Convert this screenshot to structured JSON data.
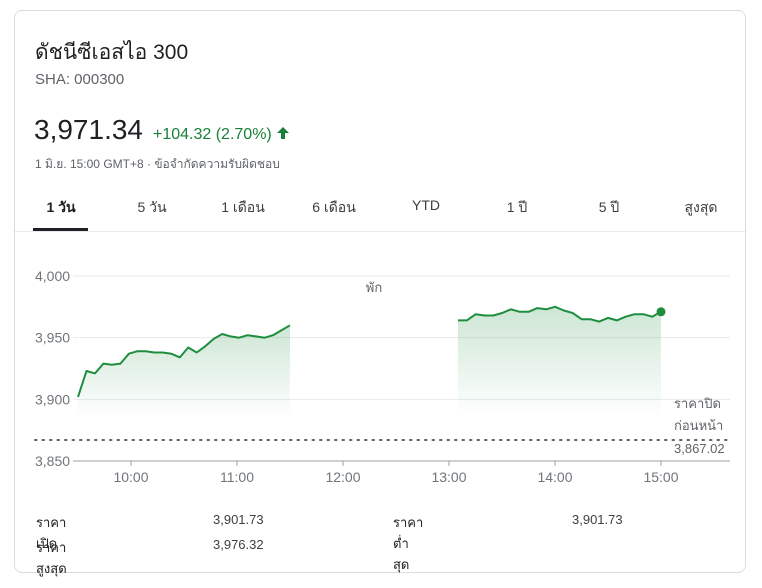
{
  "header": {
    "title": "ดัชนีซีเอสไอ 300",
    "ticker": "SHA: 000300",
    "price": "3,971.34",
    "change": "+104.32 (2.70%)",
    "meta": "1 มิ.ย. 15:00 GMT+8 · ข้อจำกัดความรับผิดชอบ"
  },
  "colors": {
    "up": "#188038",
    "line": "#1e8e3e",
    "grid": "#e8eaed"
  },
  "tabs": [
    "1 วัน",
    "5 วัน",
    "1 เดือน",
    "6 เดือน",
    "YTD",
    "1 ปี",
    "5 ปี",
    "สูงสุด"
  ],
  "active_tab": "1 วัน",
  "chart_data": {
    "type": "line",
    "x_ticks": [
      "10:00",
      "11:00",
      "12:00",
      "13:00",
      "14:00",
      "15:00"
    ],
    "y_ticks": [
      "4,000",
      "3,950",
      "3,900",
      "3,850"
    ],
    "ylim": [
      3850,
      4000
    ],
    "break_label": "พัก",
    "prev_close_label": [
      "ราคาปิด",
      "ก่อนหน้า"
    ],
    "prev_close": 3867.02,
    "prev_close_text": "3,867.02",
    "series": [
      {
        "points": [
          [
            "9:30",
            3902
          ],
          [
            "9:35",
            3923
          ],
          [
            "9:40",
            3921
          ],
          [
            "9:45",
            3929
          ],
          [
            "9:50",
            3928
          ],
          [
            "9:55",
            3929
          ],
          [
            "10:00",
            3937
          ],
          [
            "10:05",
            3939
          ],
          [
            "10:10",
            3939
          ],
          [
            "10:15",
            3938
          ],
          [
            "10:20",
            3938
          ],
          [
            "10:25",
            3937
          ],
          [
            "10:30",
            3934
          ],
          [
            "10:35",
            3942
          ],
          [
            "10:40",
            3938
          ],
          [
            "10:45",
            3943
          ],
          [
            "10:50",
            3949
          ],
          [
            "10:55",
            3953
          ],
          [
            "11:00",
            3951
          ],
          [
            "11:05",
            3950
          ],
          [
            "11:10",
            3952
          ],
          [
            "11:15",
            3951
          ],
          [
            "11:20",
            3950
          ],
          [
            "11:25",
            3952
          ],
          [
            "11:30",
            3956
          ],
          [
            "11:30",
            3960
          ]
        ]
      },
      {
        "points": [
          [
            "13:05",
            3964
          ],
          [
            "13:10",
            3964
          ],
          [
            "13:15",
            3969
          ],
          [
            "13:20",
            3968
          ],
          [
            "13:25",
            3968
          ],
          [
            "13:30",
            3970
          ],
          [
            "13:35",
            3973
          ],
          [
            "13:40",
            3971
          ],
          [
            "13:45",
            3971
          ],
          [
            "13:50",
            3974
          ],
          [
            "13:55",
            3973
          ],
          [
            "14:00",
            3975
          ],
          [
            "14:05",
            3972
          ],
          [
            "14:10",
            3970
          ],
          [
            "14:15",
            3965
          ],
          [
            "14:20",
            3965
          ],
          [
            "14:25",
            3963
          ],
          [
            "14:30",
            3966
          ],
          [
            "14:35",
            3964
          ],
          [
            "14:40",
            3967
          ],
          [
            "14:45",
            3969
          ],
          [
            "14:50",
            3969
          ],
          [
            "14:55",
            3967
          ],
          [
            "15:00",
            3971
          ]
        ]
      }
    ]
  },
  "stats": [
    {
      "label": "ราคาเปิด",
      "value": "3,901.73"
    },
    {
      "label": "ราคาต่ำสุด",
      "value": "3,901.73"
    },
    {
      "label": "ราคาสูงสุด",
      "value": "3,976.32"
    }
  ]
}
